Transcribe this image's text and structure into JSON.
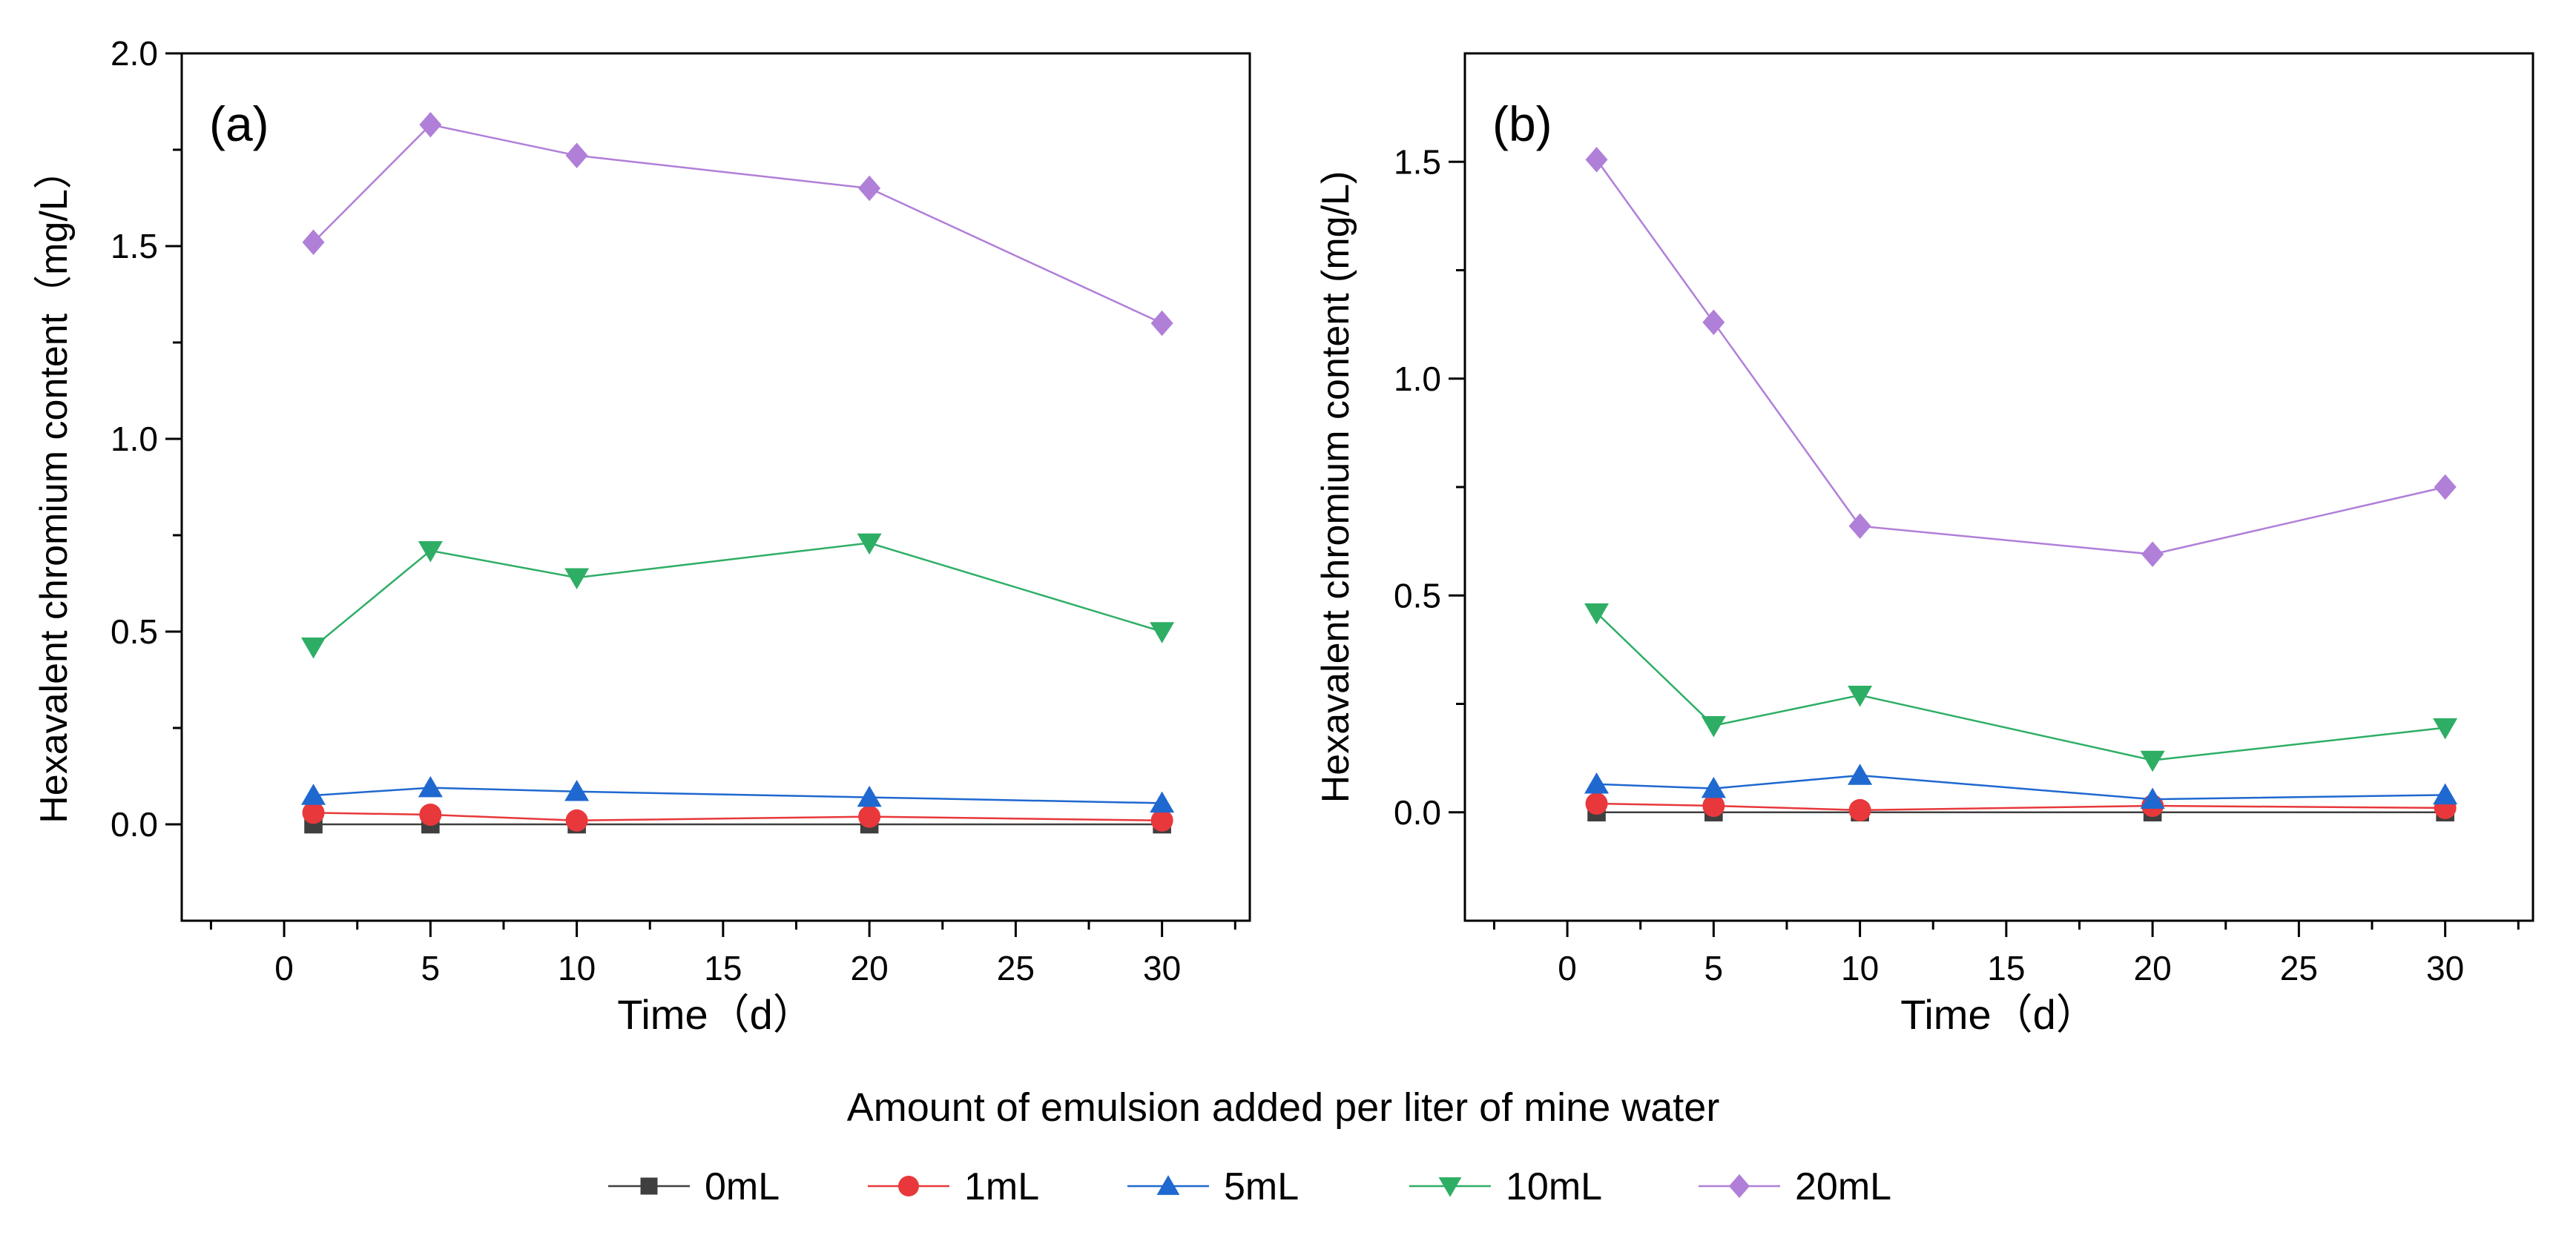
{
  "colors": {
    "0mL": "#3f3f3f",
    "1mL": "#e8383b",
    "5mL": "#1f68d0",
    "10mL": "#2eae65",
    "20mL": "#b07fd8"
  },
  "legend": {
    "title": "Amount of emulsion added per liter of mine water",
    "entries": [
      {
        "label": "0mL",
        "marker": "square"
      },
      {
        "label": "1mL",
        "marker": "circle"
      },
      {
        "label": "5mL",
        "marker": "triangle-up"
      },
      {
        "label": "10mL",
        "marker": "triangle-down"
      },
      {
        "label": "20mL",
        "marker": "diamond"
      }
    ],
    "placement": "bottom-center"
  },
  "chart_data": [
    {
      "type": "line",
      "panel_label": "(a)",
      "xlabel": "Time（d）",
      "ylabel": "Hexavalent chromium content（mg/L）",
      "xlim": [
        -3.5,
        33
      ],
      "ylim": [
        -0.25,
        2.0
      ],
      "x_ticks": [
        0,
        5,
        10,
        15,
        20,
        25,
        30
      ],
      "y_ticks": [
        0.0,
        0.5,
        1.0,
        1.5,
        2.0
      ],
      "y_tick_labels": [
        "0.0",
        "0.5",
        "1.0",
        "1.5",
        "2.0"
      ],
      "x": [
        1,
        5,
        10,
        20,
        30
      ],
      "series": [
        {
          "name": "0mL",
          "values": [
            0.0,
            0.0,
            0.0,
            0.0,
            0.0
          ]
        },
        {
          "name": "1mL",
          "values": [
            0.03,
            0.025,
            0.01,
            0.02,
            0.01
          ]
        },
        {
          "name": "5mL",
          "values": [
            0.075,
            0.095,
            0.085,
            0.07,
            0.055
          ]
        },
        {
          "name": "10mL",
          "values": [
            0.46,
            0.71,
            0.64,
            0.73,
            0.5
          ]
        },
        {
          "name": "20mL",
          "values": [
            1.51,
            1.815,
            1.735,
            1.65,
            1.3
          ]
        }
      ]
    },
    {
      "type": "line",
      "panel_label": "(b)",
      "xlabel": "Time（d）",
      "ylabel": "Hexavalent chromium  content (mg/L)",
      "xlim": [
        -3.5,
        33
      ],
      "ylim": [
        -0.25,
        1.75
      ],
      "x_ticks": [
        0,
        5,
        10,
        15,
        20,
        25,
        30
      ],
      "y_ticks": [
        0.0,
        0.5,
        1.0,
        1.5
      ],
      "y_tick_labels": [
        "0.0",
        "0.5",
        "1.0",
        "1.5"
      ],
      "x": [
        1,
        5,
        10,
        20,
        30
      ],
      "series": [
        {
          "name": "0mL",
          "values": [
            0.0,
            0.0,
            0.0,
            0.0,
            0.0
          ]
        },
        {
          "name": "1mL",
          "values": [
            0.02,
            0.015,
            0.005,
            0.015,
            0.01
          ]
        },
        {
          "name": "5mL",
          "values": [
            0.065,
            0.055,
            0.085,
            0.03,
            0.04
          ]
        },
        {
          "name": "10mL",
          "values": [
            0.46,
            0.2,
            0.27,
            0.12,
            0.195
          ]
        },
        {
          "name": "20mL",
          "values": [
            1.505,
            1.13,
            0.66,
            0.595,
            0.75
          ]
        }
      ]
    }
  ]
}
